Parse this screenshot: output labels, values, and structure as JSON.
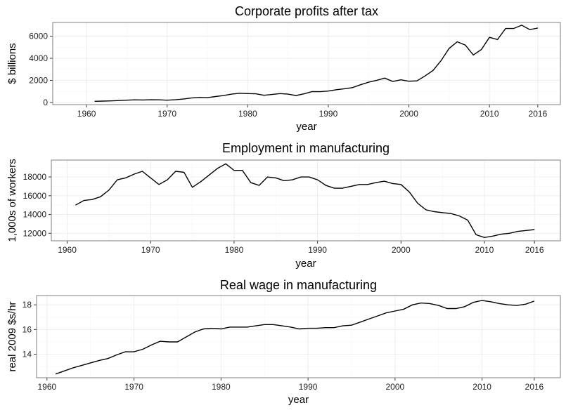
{
  "chart_data": [
    {
      "type": "line",
      "title": "Corporate profits after tax",
      "xlabel": "year",
      "ylabel": "$ billions",
      "xlim": [
        1955.8,
        2018.8
      ],
      "ylim": [
        -200,
        7250
      ],
      "x_ticks": [
        1960,
        1970,
        1980,
        1990,
        2000,
        2010,
        2016
      ],
      "y_ticks": [
        0,
        2000,
        4000,
        6000
      ],
      "y_tick_labels": [
        "0",
        "2000",
        "4000",
        "6000"
      ],
      "grid": true,
      "x": [
        1961,
        1962,
        1963,
        1964,
        1965,
        1966,
        1967,
        1968,
        1969,
        1970,
        1971,
        1972,
        1973,
        1974,
        1975,
        1976,
        1977,
        1978,
        1979,
        1980,
        1981,
        1982,
        1983,
        1984,
        1985,
        1986,
        1987,
        1988,
        1989,
        1990,
        1991,
        1992,
        1993,
        1994,
        1995,
        1996,
        1997,
        1998,
        1999,
        2000,
        2001,
        2002,
        2003,
        2004,
        2005,
        2006,
        2007,
        2008,
        2009,
        2010,
        2011,
        2012,
        2013,
        2014,
        2015,
        2016
      ],
      "y": [
        100,
        120,
        140,
        170,
        200,
        230,
        220,
        240,
        230,
        200,
        240,
        300,
        400,
        450,
        430,
        530,
        620,
        750,
        830,
        800,
        780,
        650,
        720,
        800,
        750,
        620,
        780,
        980,
        970,
        1030,
        1150,
        1240,
        1340,
        1600,
        1830,
        2000,
        2200,
        1900,
        2050,
        1920,
        1950,
        2400,
        2900,
        3800,
        4900,
        5500,
        5200,
        4300,
        4800,
        5900,
        5700,
        6700,
        6700,
        7000,
        6600,
        6750
      ]
    },
    {
      "type": "line",
      "title": "Employment in manufacturing",
      "xlabel": "year",
      "ylabel": "1,000s of workers",
      "xlim": [
        1958.1,
        2019.1
      ],
      "ylim": [
        11200,
        19800
      ],
      "x_ticks": [
        1960,
        1970,
        1980,
        1990,
        2000,
        2010,
        2016
      ],
      "y_ticks": [
        12000,
        14000,
        16000,
        18000
      ],
      "y_tick_labels": [
        "12000",
        "14000",
        "16000",
        "18000"
      ],
      "grid": true,
      "x": [
        1961,
        1962,
        1963,
        1964,
        1965,
        1966,
        1967,
        1968,
        1969,
        1970,
        1971,
        1972,
        1973,
        1974,
        1975,
        1976,
        1977,
        1978,
        1979,
        1980,
        1981,
        1982,
        1983,
        1984,
        1985,
        1986,
        1987,
        1988,
        1989,
        1990,
        1991,
        1992,
        1993,
        1994,
        1995,
        1996,
        1997,
        1998,
        1999,
        2000,
        2001,
        2002,
        2003,
        2004,
        2005,
        2006,
        2007,
        2008,
        2009,
        2010,
        2011,
        2012,
        2013,
        2014,
        2015,
        2016
      ],
      "y": [
        15000,
        15500,
        15600,
        15900,
        16600,
        17700,
        17900,
        18300,
        18600,
        17900,
        17200,
        17700,
        18600,
        18500,
        16900,
        17500,
        18200,
        18900,
        19400,
        18700,
        18700,
        17400,
        17100,
        18000,
        17900,
        17600,
        17700,
        18000,
        18000,
        17700,
        17100,
        16800,
        16800,
        17000,
        17200,
        17200,
        17400,
        17550,
        17300,
        17200,
        16400,
        15200,
        14500,
        14300,
        14200,
        14100,
        13850,
        13400,
        11850,
        11550,
        11700,
        11900,
        12000,
        12200,
        12300,
        12400
      ]
    },
    {
      "type": "line",
      "title": "Real wage in manufacturing",
      "xlabel": "year",
      "ylabel": "real 2009 $s/hr",
      "xlim": [
        1958.8,
        2019.0
      ],
      "ylim": [
        12.1,
        18.75
      ],
      "x_ticks": [
        1960,
        1970,
        1980,
        1990,
        2000,
        2010,
        2016
      ],
      "y_ticks": [
        14,
        16,
        18
      ],
      "y_tick_labels": [
        "14",
        "16",
        "18"
      ],
      "grid": true,
      "x": [
        1961,
        1962,
        1963,
        1964,
        1965,
        1966,
        1967,
        1968,
        1969,
        1970,
        1971,
        1972,
        1973,
        1974,
        1975,
        1976,
        1977,
        1978,
        1979,
        1980,
        1981,
        1982,
        1983,
        1984,
        1985,
        1986,
        1987,
        1988,
        1989,
        1990,
        1991,
        1992,
        1993,
        1994,
        1995,
        1996,
        1997,
        1998,
        1999,
        2000,
        2001,
        2002,
        2003,
        2004,
        2005,
        2006,
        2007,
        2008,
        2009,
        2010,
        2011,
        2012,
        2013,
        2014,
        2015,
        2016
      ],
      "y": [
        12.4,
        12.65,
        12.9,
        13.1,
        13.3,
        13.5,
        13.65,
        13.95,
        14.2,
        14.2,
        14.4,
        14.75,
        15.05,
        15.0,
        15.0,
        15.4,
        15.8,
        16.05,
        16.1,
        16.05,
        16.2,
        16.2,
        16.2,
        16.3,
        16.4,
        16.4,
        16.3,
        16.2,
        16.05,
        16.1,
        16.1,
        16.15,
        16.15,
        16.3,
        16.35,
        16.6,
        16.85,
        17.1,
        17.35,
        17.5,
        17.65,
        18.0,
        18.15,
        18.1,
        17.95,
        17.7,
        17.7,
        17.85,
        18.2,
        18.35,
        18.25,
        18.1,
        18.0,
        17.95,
        18.05,
        18.3
      ]
    }
  ]
}
